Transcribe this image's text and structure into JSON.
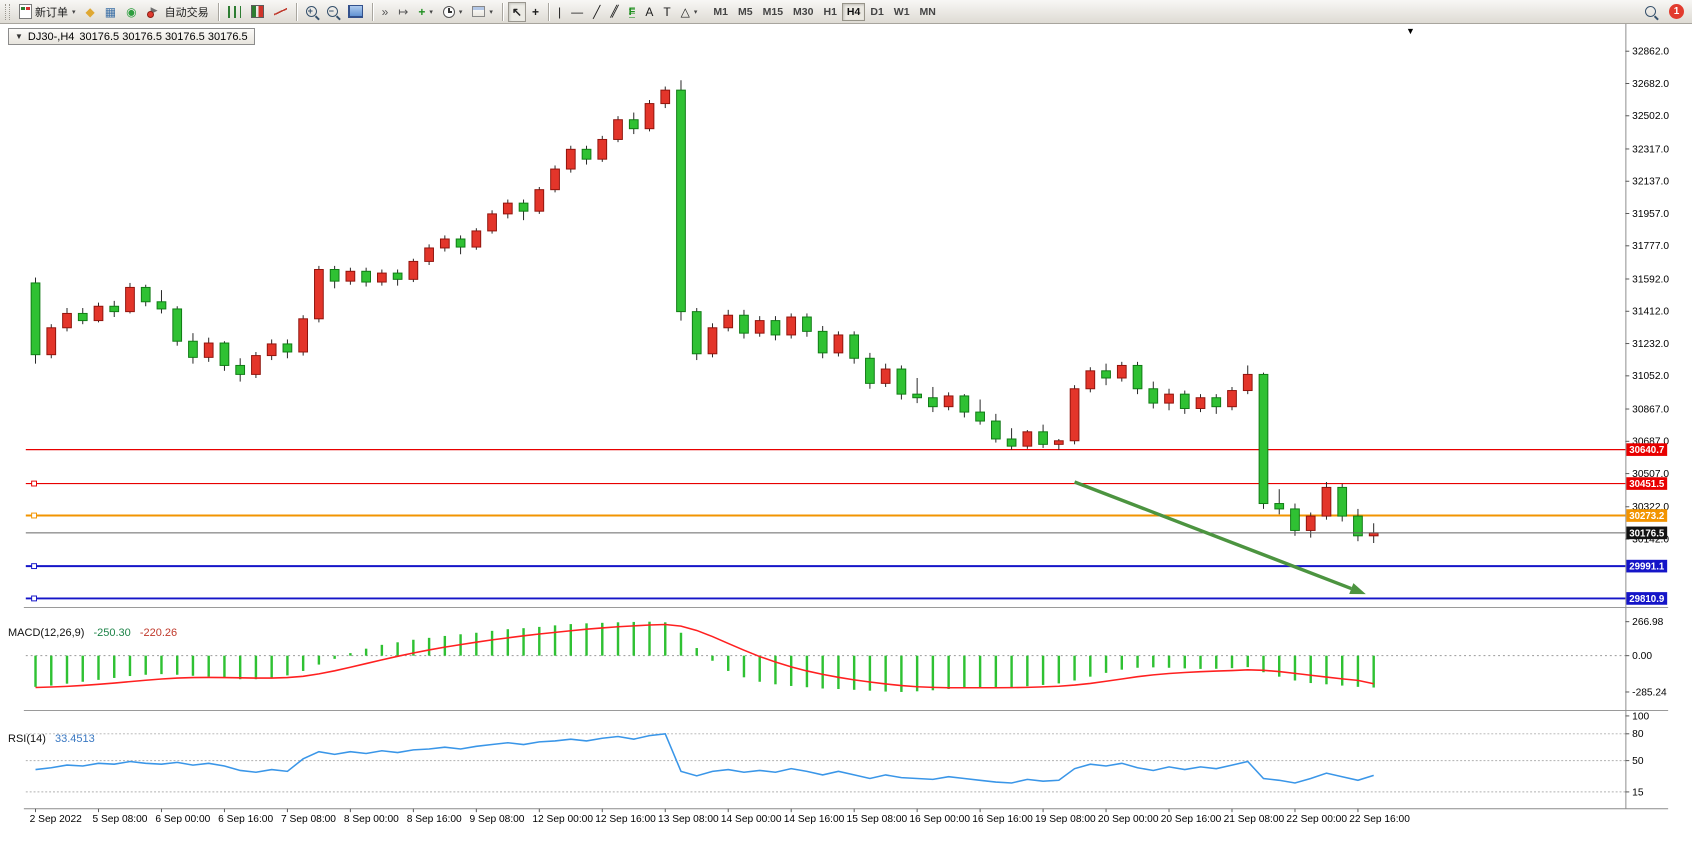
{
  "toolbar": {
    "new_order_label": "新订单",
    "autotrade_label": "自动交易",
    "timeframes": [
      "M1",
      "M5",
      "M15",
      "M30",
      "H1",
      "H4",
      "D1",
      "W1",
      "MN"
    ],
    "active_timeframe": "H4",
    "notification_count": "1"
  },
  "icons": {
    "dropdown": "▾",
    "new_chart": "◆",
    "profiles": "▦",
    "market_watch": "◉",
    "auto_scroll": "»",
    "chart_shift": "↦",
    "indicators": "+",
    "cursor": "↖",
    "crosshair": "+",
    "vline": "|",
    "hline": "—",
    "trendline": "╱",
    "channel": "╱╱",
    "fibonacci": "F",
    "text_tool": "A",
    "label_tool": "T",
    "shapes": "△",
    "collapse": "▼",
    "shift_marker": "▼"
  },
  "chart_header": {
    "symbol": "DJ30-,H4",
    "ohlc": "30176.5 30176.5 30176.5 30176.5"
  },
  "chart_data": {
    "type": "candlestick",
    "symbol": "DJ30-",
    "period": "H4",
    "colors": {
      "up": {
        "fill": "#e3352a",
        "stroke": "#8f130c"
      },
      "down": {
        "fill": "#2fc133",
        "stroke": "#0f7a14"
      },
      "wick": "#222222"
    },
    "x_labels": [
      "2 Sep 2022",
      "5 Sep 08:00",
      "6 Sep 00:00",
      "6 Sep 16:00",
      "7 Sep 08:00",
      "8 Sep 00:00",
      "8 Sep 16:00",
      "9 Sep 08:00",
      "12 Sep 00:00",
      "12 Sep 16:00",
      "13 Sep 08:00",
      "14 Sep 00:00",
      "14 Sep 16:00",
      "15 Sep 08:00",
      "16 Sep 00:00",
      "16 Sep 16:00",
      "19 Sep 08:00",
      "20 Sep 00:00",
      "20 Sep 16:00",
      "21 Sep 08:00",
      "22 Sep 00:00",
      "22 Sep 16:00"
    ],
    "y_ticks": [
      32862.0,
      32682.0,
      32502.0,
      32317.0,
      32137.0,
      31957.0,
      31777.0,
      31592.0,
      31412.0,
      31232.0,
      31052.0,
      30867.0,
      30687.0,
      30507.0,
      30322.0,
      30142.0
    ],
    "candles_ohlc": [
      [
        31570,
        31600,
        31120,
        31170
      ],
      [
        31170,
        31340,
        31150,
        31320
      ],
      [
        31320,
        31430,
        31300,
        31400
      ],
      [
        31400,
        31430,
        31340,
        31360
      ],
      [
        31360,
        31460,
        31350,
        31440
      ],
      [
        31440,
        31470,
        31380,
        31410
      ],
      [
        31410,
        31570,
        31400,
        31545
      ],
      [
        31545,
        31560,
        31440,
        31465
      ],
      [
        31465,
        31530,
        31400,
        31425
      ],
      [
        31425,
        31440,
        31220,
        31245
      ],
      [
        31245,
        31290,
        31120,
        31155
      ],
      [
        31155,
        31265,
        31130,
        31235
      ],
      [
        31235,
        31245,
        31080,
        31110
      ],
      [
        31110,
        31150,
        31020,
        31060
      ],
      [
        31060,
        31185,
        31040,
        31165
      ],
      [
        31165,
        31255,
        31140,
        31230
      ],
      [
        31230,
        31255,
        31150,
        31185
      ],
      [
        31185,
        31390,
        31165,
        31370
      ],
      [
        31370,
        31665,
        31350,
        31645
      ],
      [
        31645,
        31665,
        31540,
        31580
      ],
      [
        31580,
        31655,
        31560,
        31635
      ],
      [
        31635,
        31655,
        31550,
        31575
      ],
      [
        31575,
        31645,
        31555,
        31625
      ],
      [
        31625,
        31645,
        31555,
        31590
      ],
      [
        31590,
        31705,
        31575,
        31690
      ],
      [
        31690,
        31785,
        31670,
        31765
      ],
      [
        31765,
        31835,
        31745,
        31815
      ],
      [
        31815,
        31835,
        31730,
        31770
      ],
      [
        31770,
        31875,
        31755,
        31860
      ],
      [
        31860,
        31975,
        31845,
        31955
      ],
      [
        31955,
        32035,
        31930,
        32015
      ],
      [
        32015,
        32035,
        31920,
        31970
      ],
      [
        31970,
        32105,
        31955,
        32090
      ],
      [
        32090,
        32225,
        32075,
        32205
      ],
      [
        32205,
        32335,
        32185,
        32315
      ],
      [
        32315,
        32335,
        32230,
        32260
      ],
      [
        32260,
        32390,
        32245,
        32370
      ],
      [
        32370,
        32500,
        32355,
        32480
      ],
      [
        32480,
        32520,
        32400,
        32430
      ],
      [
        32430,
        32590,
        32415,
        32570
      ],
      [
        32570,
        32665,
        32545,
        32645
      ],
      [
        32645,
        32700,
        31360,
        31410
      ],
      [
        31410,
        31430,
        31140,
        31175
      ],
      [
        31175,
        31345,
        31155,
        31320
      ],
      [
        31320,
        31420,
        31300,
        31390
      ],
      [
        31390,
        31420,
        31260,
        31290
      ],
      [
        31290,
        31385,
        31270,
        31360
      ],
      [
        31360,
        31385,
        31250,
        31280
      ],
      [
        31280,
        31400,
        31260,
        31380
      ],
      [
        31380,
        31400,
        31270,
        31300
      ],
      [
        31300,
        31330,
        31150,
        31180
      ],
      [
        31180,
        31300,
        31160,
        31280
      ],
      [
        31280,
        31300,
        31120,
        31150
      ],
      [
        31150,
        31180,
        30980,
        31010
      ],
      [
        31010,
        31120,
        30990,
        31090
      ],
      [
        31090,
        31110,
        30920,
        30950
      ],
      [
        30950,
        31040,
        30900,
        30930
      ],
      [
        30930,
        30990,
        30850,
        30880
      ],
      [
        30880,
        30960,
        30860,
        30940
      ],
      [
        30940,
        30950,
        30820,
        30850
      ],
      [
        30850,
        30920,
        30780,
        30800
      ],
      [
        30800,
        30840,
        30680,
        30700
      ],
      [
        30700,
        30760,
        30640,
        30660
      ],
      [
        30660,
        30750,
        30645,
        30740
      ],
      [
        30740,
        30780,
        30650,
        30670
      ],
      [
        30670,
        30700,
        30640,
        30690
      ],
      [
        30690,
        31000,
        30670,
        30980
      ],
      [
        30980,
        31100,
        30960,
        31080
      ],
      [
        31080,
        31120,
        31000,
        31040
      ],
      [
        31040,
        31130,
        31020,
        31110
      ],
      [
        31110,
        31130,
        30950,
        30980
      ],
      [
        30980,
        31020,
        30870,
        30900
      ],
      [
        30900,
        30980,
        30860,
        30950
      ],
      [
        30950,
        30970,
        30840,
        30870
      ],
      [
        30870,
        30950,
        30850,
        30930
      ],
      [
        30930,
        30950,
        30840,
        30880
      ],
      [
        30880,
        30990,
        30860,
        30970
      ],
      [
        30970,
        31110,
        30950,
        31060
      ],
      [
        31060,
        31070,
        30310,
        30340
      ],
      [
        30340,
        30420,
        30280,
        30310
      ],
      [
        30310,
        30340,
        30160,
        30190
      ],
      [
        30190,
        30290,
        30150,
        30270
      ],
      [
        30270,
        30460,
        30250,
        30430
      ],
      [
        30430,
        30450,
        30240,
        30270
      ],
      [
        30270,
        30310,
        30130,
        30160
      ],
      [
        30160,
        30230,
        30120,
        30176.5
      ]
    ],
    "h_lines": [
      {
        "price": 30640.7,
        "color": "#e80000",
        "width": 1.2,
        "handles": false
      },
      {
        "price": 30451.5,
        "color": "#e80000",
        "width": 1.2,
        "handles": true
      },
      {
        "price": 30273.2,
        "color": "#f29400",
        "width": 2,
        "handles": true
      },
      {
        "price": 29991.1,
        "color": "#1515c8",
        "width": 2,
        "handles": true
      },
      {
        "price": 29810.9,
        "color": "#1515c8",
        "width": 2,
        "handles": true
      }
    ],
    "current_price": {
      "value": 30176.5,
      "line_color": "#666666",
      "tag_color": "#111111"
    },
    "arrow": {
      "from_index": 66,
      "from_price": 30460,
      "to_index": 84.5,
      "to_price": 29835,
      "color": "#4c9440",
      "width": 3.5
    },
    "macd": {
      "name": "MACD(12,26,9)",
      "value1": "-250.30",
      "value2": "-220.26",
      "axis_labels": [
        "266.98",
        "0.00",
        "-285.24"
      ],
      "axis_values": [
        266.98,
        0,
        -285.24
      ],
      "histogram_color": "#2fc133",
      "signal_color": "#ff2020",
      "histogram": [
        -245,
        -235,
        -220,
        -205,
        -190,
        -175,
        -160,
        -150,
        -145,
        -150,
        -158,
        -165,
        -175,
        -185,
        -185,
        -175,
        -155,
        -120,
        -70,
        -25,
        20,
        55,
        85,
        105,
        125,
        140,
        155,
        168,
        180,
        195,
        208,
        216,
        226,
        238,
        248,
        254,
        258,
        262,
        265,
        267,
        262,
        180,
        60,
        -40,
        -120,
        -170,
        -205,
        -225,
        -238,
        -248,
        -258,
        -262,
        -268,
        -275,
        -282,
        -285,
        -280,
        -272,
        -262,
        -255,
        -250,
        -252,
        -248,
        -240,
        -230,
        -218,
        -195,
        -165,
        -135,
        -110,
        -95,
        -92,
        -95,
        -100,
        -104,
        -103,
        -98,
        -90,
        -130,
        -165,
        -195,
        -215,
        -225,
        -235,
        -245,
        -250.3
      ],
      "signal": [
        -250,
        -246,
        -241,
        -234,
        -225,
        -215,
        -204,
        -193,
        -183,
        -176,
        -172,
        -171,
        -172,
        -174,
        -176,
        -176,
        -172,
        -162,
        -143,
        -119,
        -91,
        -62,
        -33,
        -5,
        21,
        45,
        67,
        87,
        106,
        124,
        140,
        156,
        170,
        183,
        196,
        208,
        218,
        227,
        234,
        241,
        245,
        232,
        198,
        150,
        96,
        43,
        -7,
        -50,
        -88,
        -120,
        -147,
        -170,
        -190,
        -207,
        -222,
        -235,
        -244,
        -249,
        -252,
        -252,
        -252,
        -252,
        -251,
        -249,
        -245,
        -240,
        -231,
        -218,
        -201,
        -183,
        -165,
        -151,
        -140,
        -132,
        -126,
        -121,
        -117,
        -111,
        -115,
        -125,
        -139,
        -154,
        -168,
        -182,
        -194,
        -220.26
      ]
    },
    "rsi": {
      "name": "RSI(14)",
      "value": "33.4513",
      "axis_labels": [
        "100",
        "80",
        "50",
        "15"
      ],
      "axis_values": [
        100,
        80,
        50,
        15
      ],
      "levels": [
        80,
        50,
        15
      ],
      "line_color": "#3a96e8",
      "values": [
        40,
        42,
        45,
        44,
        47,
        46,
        49,
        47,
        46,
        48,
        45,
        47,
        44,
        39,
        37,
        40,
        38,
        52,
        60,
        57,
        60,
        58,
        61,
        59,
        62,
        63,
        65,
        63,
        66,
        68,
        70,
        68,
        71,
        72,
        74,
        72,
        75,
        77,
        74,
        78,
        80,
        38,
        33,
        38,
        40,
        37,
        39,
        37,
        41,
        38,
        34,
        38,
        34,
        30,
        34,
        31,
        30,
        29,
        32,
        30,
        28,
        26,
        25,
        29,
        27,
        28,
        41,
        46,
        44,
        47,
        42,
        39,
        43,
        40,
        43,
        41,
        45,
        49,
        30,
        28,
        25,
        30,
        36,
        32,
        28,
        33.45
      ]
    }
  }
}
